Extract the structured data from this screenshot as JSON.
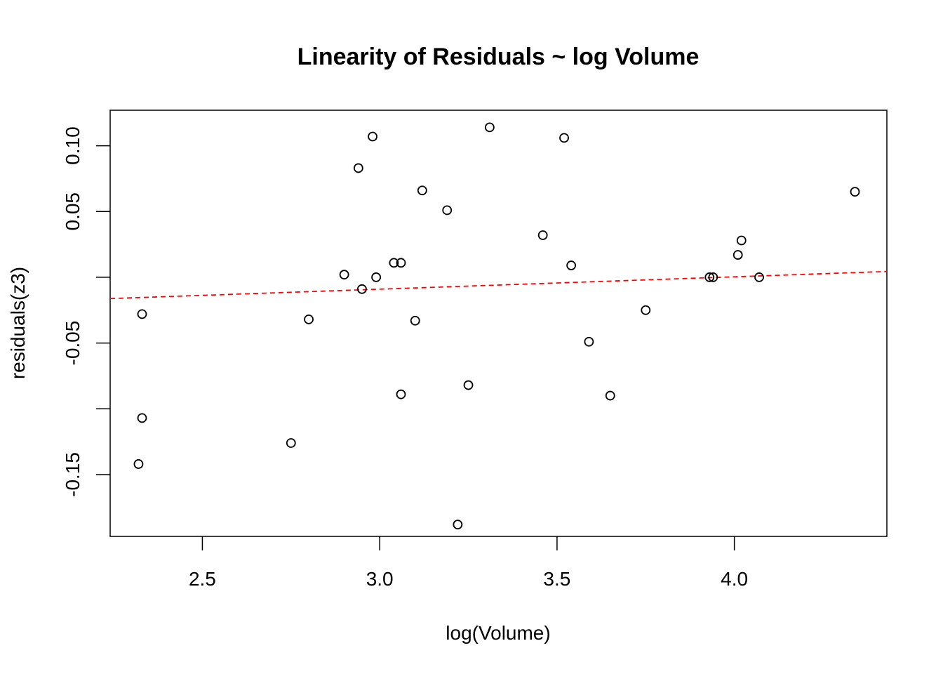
{
  "chart_data": {
    "type": "scatter",
    "title": "Linearity of Residuals ~ log Volume",
    "xlabel": "log(Volume)",
    "ylabel": "residuals(z3)",
    "xlim": [
      2.24,
      4.43
    ],
    "ylim": [
      -0.197,
      0.127
    ],
    "x_ticks": [
      2.5,
      3.0,
      3.5,
      4.0
    ],
    "x_tick_labels": [
      "2.5",
      "3.0",
      "3.5",
      "4.0"
    ],
    "y_ticks": [
      -0.15,
      -0.1,
      -0.05,
      0.0,
      0.05,
      0.1
    ],
    "y_tick_labels": [
      "-0.15",
      "",
      "-0.05",
      "",
      "0.05",
      "0.10"
    ],
    "grid": false,
    "points": [
      {
        "x": 2.32,
        "y": -0.142
      },
      {
        "x": 2.33,
        "y": -0.028
      },
      {
        "x": 2.33,
        "y": -0.107
      },
      {
        "x": 2.75,
        "y": -0.126
      },
      {
        "x": 2.8,
        "y": -0.032
      },
      {
        "x": 2.9,
        "y": 0.002
      },
      {
        "x": 2.94,
        "y": 0.083
      },
      {
        "x": 2.95,
        "y": -0.009
      },
      {
        "x": 2.98,
        "y": 0.107
      },
      {
        "x": 2.99,
        "y": 0.0
      },
      {
        "x": 3.04,
        "y": 0.011
      },
      {
        "x": 3.06,
        "y": 0.011
      },
      {
        "x": 3.06,
        "y": -0.089
      },
      {
        "x": 3.1,
        "y": -0.033
      },
      {
        "x": 3.12,
        "y": 0.066
      },
      {
        "x": 3.19,
        "y": 0.051
      },
      {
        "x": 3.22,
        "y": -0.188
      },
      {
        "x": 3.25,
        "y": -0.082
      },
      {
        "x": 3.31,
        "y": 0.114
      },
      {
        "x": 3.46,
        "y": 0.032
      },
      {
        "x": 3.52,
        "y": 0.106
      },
      {
        "x": 3.54,
        "y": 0.009
      },
      {
        "x": 3.59,
        "y": -0.049
      },
      {
        "x": 3.65,
        "y": -0.09
      },
      {
        "x": 3.75,
        "y": -0.025
      },
      {
        "x": 3.93,
        "y": 0.0
      },
      {
        "x": 3.94,
        "y": 0.0
      },
      {
        "x": 4.01,
        "y": 0.017
      },
      {
        "x": 4.02,
        "y": 0.028
      },
      {
        "x": 4.07,
        "y": 0.0
      },
      {
        "x": 4.34,
        "y": 0.065
      }
    ],
    "fit_line": {
      "style": "dashed",
      "color": "#ff0000",
      "x": [
        2.24,
        4.43
      ],
      "y": [
        -0.0162,
        0.0044
      ]
    },
    "point_color": "#000000"
  }
}
